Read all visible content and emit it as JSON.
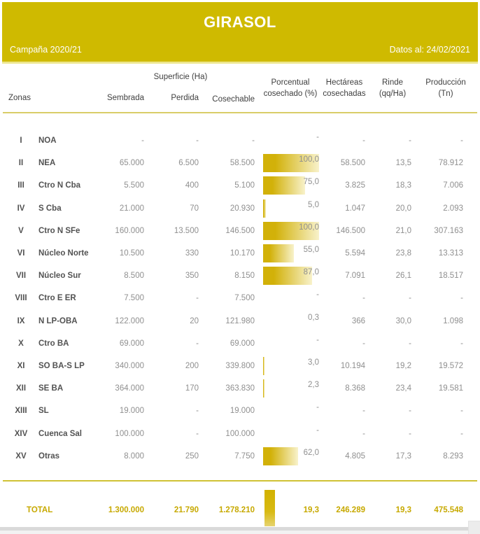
{
  "header": {
    "title": "GIRASOL",
    "campaign": "Campaña 2020/21",
    "date_label": "Datos al: 24/02/2021"
  },
  "columns": {
    "group_superficie": "Superficie (Ha)",
    "zonas": "Zonas",
    "sembrada": "Sembrada",
    "perdida": "Perdida",
    "cosechable": "Cosechable",
    "porcentual": "Porcentual\ncosechado (%)",
    "hectareas": "Hectáreas\ncosechadas",
    "rinde": "Rinde\n(qq/Ha)",
    "produccion": "Producción\n(Tn)"
  },
  "table": {
    "rows": [
      {
        "num": "I",
        "name": "NOA",
        "sembrada": "-",
        "perdida": "-",
        "cosechable": "-",
        "pct": 0,
        "pct_label": "-",
        "hectareas": "-",
        "rinde": "-",
        "produccion": "-"
      },
      {
        "num": "II",
        "name": "NEA",
        "sembrada": "65.000",
        "perdida": "6.500",
        "cosechable": "58.500",
        "pct": 100,
        "pct_label": "100,0",
        "hectareas": "58.500",
        "rinde": "13,5",
        "produccion": "78.912"
      },
      {
        "num": "III",
        "name": "Ctro N Cba",
        "sembrada": "5.500",
        "perdida": "400",
        "cosechable": "5.100",
        "pct": 75,
        "pct_label": "75,0",
        "hectareas": "3.825",
        "rinde": "18,3",
        "produccion": "7.006"
      },
      {
        "num": "IV",
        "name": "S Cba",
        "sembrada": "21.000",
        "perdida": "70",
        "cosechable": "20.930",
        "pct": 5,
        "pct_label": "5,0",
        "hectareas": "1.047",
        "rinde": "20,0",
        "produccion": "2.093"
      },
      {
        "num": "V",
        "name": "Ctro N SFe",
        "sembrada": "160.000",
        "perdida": "13.500",
        "cosechable": "146.500",
        "pct": 100,
        "pct_label": "100,0",
        "hectareas": "146.500",
        "rinde": "21,0",
        "produccion": "307.163"
      },
      {
        "num": "VI",
        "name": "Núcleo Norte",
        "sembrada": "10.500",
        "perdida": "330",
        "cosechable": "10.170",
        "pct": 55,
        "pct_label": "55,0",
        "hectareas": "5.594",
        "rinde": "23,8",
        "produccion": "13.313"
      },
      {
        "num": "VII",
        "name": "Núcleo Sur",
        "sembrada": "8.500",
        "perdida": "350",
        "cosechable": "8.150",
        "pct": 87,
        "pct_label": "87,0",
        "hectareas": "7.091",
        "rinde": "26,1",
        "produccion": "18.517"
      },
      {
        "num": "VIII",
        "name": "Ctro E ER",
        "sembrada": "7.500",
        "perdida": "-",
        "cosechable": "7.500",
        "pct": 0,
        "pct_label": "-",
        "hectareas": "-",
        "rinde": "-",
        "produccion": "-"
      },
      {
        "num": "IX",
        "name": "N LP-OBA",
        "sembrada": "122.000",
        "perdida": "20",
        "cosechable": "121.980",
        "pct": 0.3,
        "pct_label": "0,3",
        "hectareas": "366",
        "rinde": "30,0",
        "produccion": "1.098"
      },
      {
        "num": "X",
        "name": "Ctro BA",
        "sembrada": "69.000",
        "perdida": "-",
        "cosechable": "69.000",
        "pct": 0,
        "pct_label": "-",
        "hectareas": "-",
        "rinde": "-",
        "produccion": "-"
      },
      {
        "num": "XI",
        "name": "SO BA-S LP",
        "sembrada": "340.000",
        "perdida": "200",
        "cosechable": "339.800",
        "pct": 3,
        "pct_label": "3,0",
        "hectareas": "10.194",
        "rinde": "19,2",
        "produccion": "19.572"
      },
      {
        "num": "XII",
        "name": "SE BA",
        "sembrada": "364.000",
        "perdida": "170",
        "cosechable": "363.830",
        "pct": 2.3,
        "pct_label": "2,3",
        "hectareas": "8.368",
        "rinde": "23,4",
        "produccion": "19.581"
      },
      {
        "num": "XIII",
        "name": "SL",
        "sembrada": "19.000",
        "perdida": "-",
        "cosechable": "19.000",
        "pct": 0,
        "pct_label": "-",
        "hectareas": "-",
        "rinde": "-",
        "produccion": "-"
      },
      {
        "num": "XIV",
        "name": "Cuenca Sal",
        "sembrada": "100.000",
        "perdida": "-",
        "cosechable": "100.000",
        "pct": 0,
        "pct_label": "-",
        "hectareas": "-",
        "rinde": "-",
        "produccion": "-"
      },
      {
        "num": "XV",
        "name": "Otras",
        "sembrada": "8.000",
        "perdida": "250",
        "cosechable": "7.750",
        "pct": 62,
        "pct_label": "62,0",
        "hectareas": "4.805",
        "rinde": "17,3",
        "produccion": "8.293"
      }
    ],
    "total": {
      "label": "TOTAL",
      "sembrada": "1.300.000",
      "perdida": "21.790",
      "cosechable": "1.278.210",
      "pct": 19.3,
      "pct_label": "19,3",
      "hectareas": "246.289",
      "rinde": "19,3",
      "produccion": "475.548"
    }
  },
  "colors": {
    "header_gold": "#cfba00",
    "bar_gold": "#d2b109",
    "bar_fade": "#f8f2cb",
    "total_text_gold": "#c7a900",
    "rule_gold": "#d9cd68",
    "value_grey": "#8f8f8f"
  },
  "chart_data": {
    "type": "table",
    "title": "GIRASOL",
    "subtitle": "Campaña 2020/21 — Datos al: 24/02/2021",
    "columns": [
      "Zonas",
      "Sembrada (Ha)",
      "Perdida (Ha)",
      "Cosechable (Ha)",
      "Porcentual cosechado (%)",
      "Hectáreas cosechadas",
      "Rinde (qq/Ha)",
      "Producción (Tn)"
    ],
    "embedded_bar_column": "Porcentual cosechado (%)",
    "bar_range": [
      0,
      100
    ],
    "rows": [
      [
        "I - NOA",
        null,
        null,
        null,
        null,
        null,
        null,
        null
      ],
      [
        "II - NEA",
        65000,
        6500,
        58500,
        100.0,
        58500,
        13.5,
        78912
      ],
      [
        "III - Ctro N Cba",
        5500,
        400,
        5100,
        75.0,
        3825,
        18.3,
        7006
      ],
      [
        "IV - S Cba",
        21000,
        70,
        20930,
        5.0,
        1047,
        20.0,
        2093
      ],
      [
        "V - Ctro N SFe",
        160000,
        13500,
        146500,
        100.0,
        146500,
        21.0,
        307163
      ],
      [
        "VI - Núcleo Norte",
        10500,
        330,
        10170,
        55.0,
        5594,
        23.8,
        13313
      ],
      [
        "VII - Núcleo Sur",
        8500,
        350,
        8150,
        87.0,
        7091,
        26.1,
        18517
      ],
      [
        "VIII - Ctro E ER",
        7500,
        null,
        7500,
        null,
        null,
        null,
        null
      ],
      [
        "IX - N LP-OBA",
        122000,
        20,
        121980,
        0.3,
        366,
        30.0,
        1098
      ],
      [
        "X - Ctro BA",
        69000,
        null,
        69000,
        null,
        null,
        null,
        null
      ],
      [
        "XI - SO BA-S LP",
        340000,
        200,
        339800,
        3.0,
        10194,
        19.2,
        19572
      ],
      [
        "XII - SE BA",
        364000,
        170,
        363830,
        2.3,
        8368,
        23.4,
        19581
      ],
      [
        "XIII - SL",
        19000,
        null,
        19000,
        null,
        null,
        null,
        null
      ],
      [
        "XIV - Cuenca Sal",
        100000,
        null,
        100000,
        null,
        null,
        null,
        null
      ],
      [
        "XV - Otras",
        8000,
        250,
        7750,
        62.0,
        4805,
        17.3,
        8293
      ]
    ],
    "total_row": [
      "TOTAL",
      1300000,
      21790,
      1278210,
      19.3,
      246289,
      19.3,
      475548
    ]
  }
}
